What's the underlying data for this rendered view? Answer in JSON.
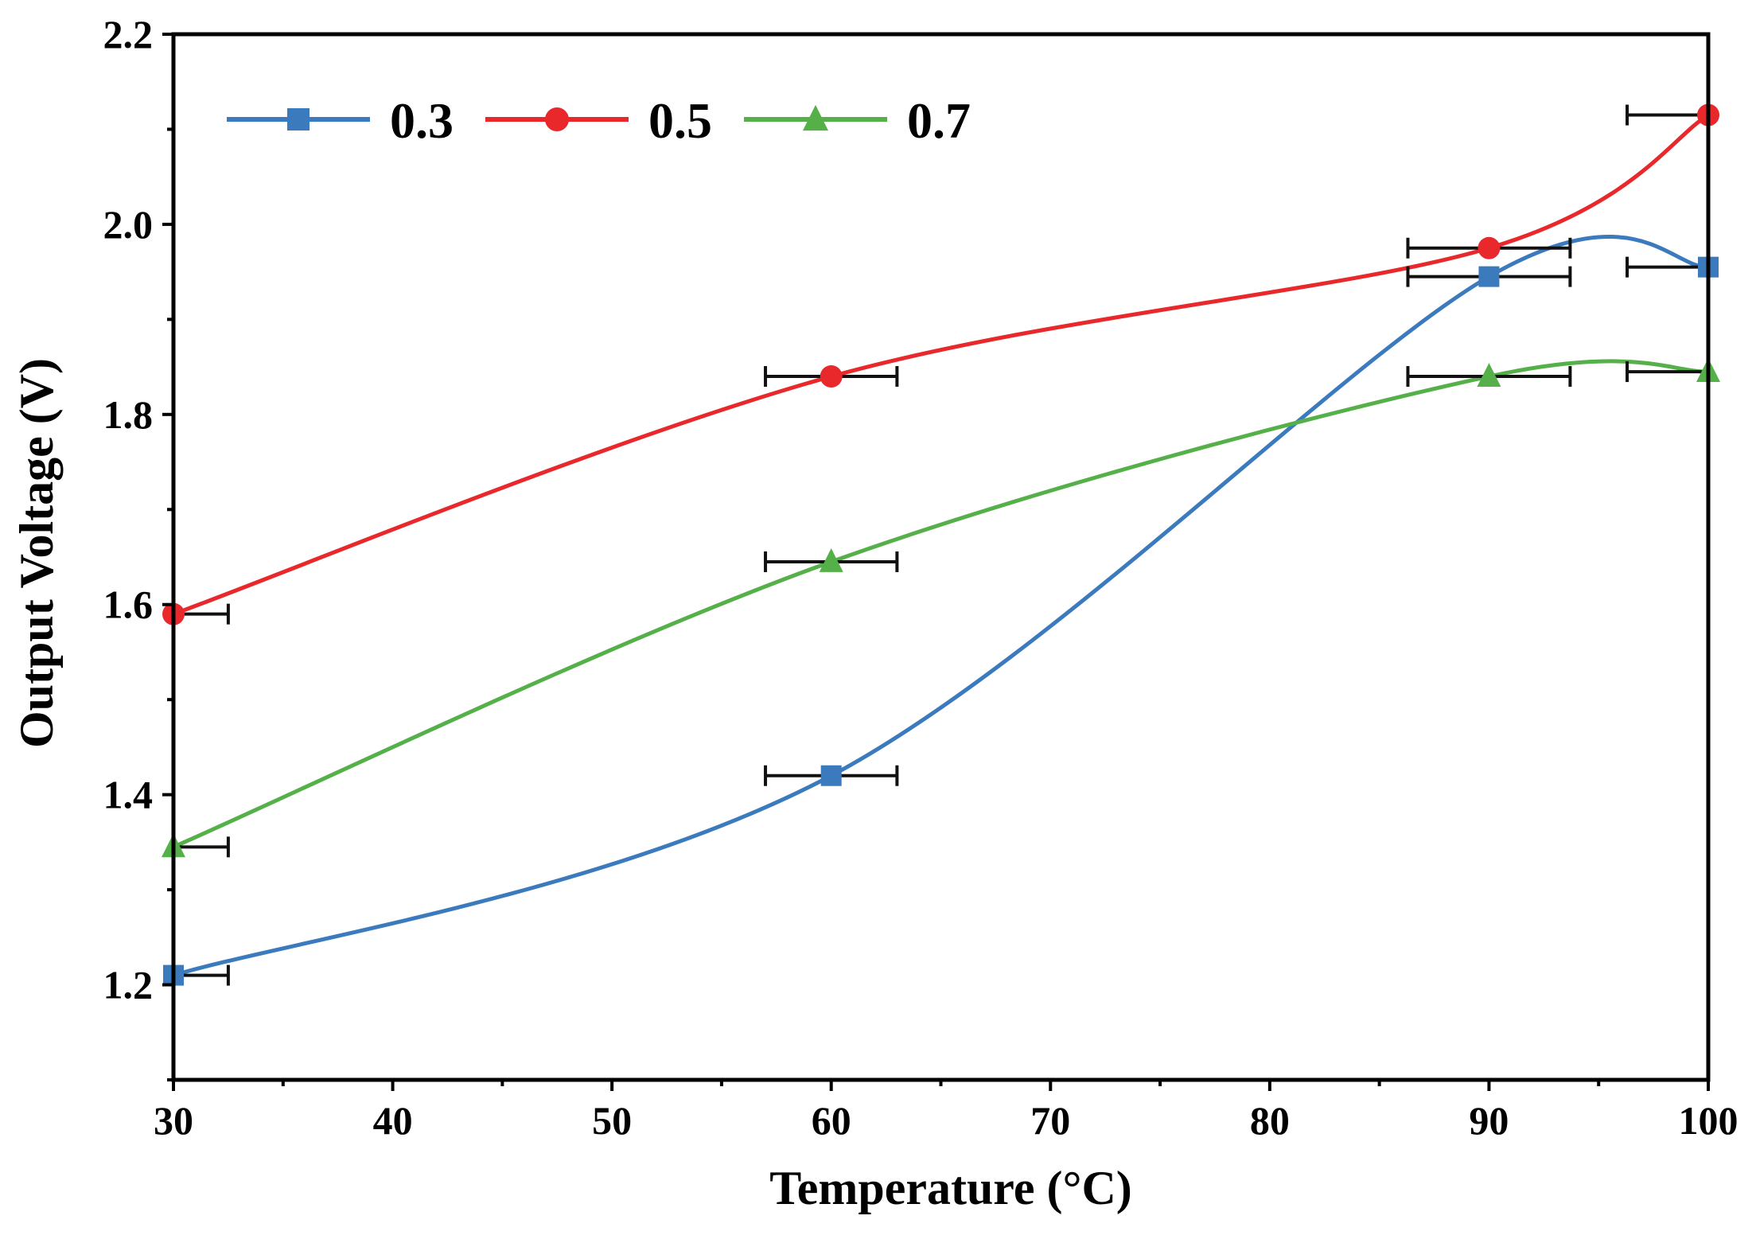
{
  "chart_data": {
    "type": "line",
    "title": "",
    "xlabel": "Temperature (°C)",
    "ylabel": "Output Voltage (V)",
    "xlim": [
      30,
      100
    ],
    "ylim": [
      1.1,
      2.2
    ],
    "xticks": [
      30,
      40,
      50,
      60,
      70,
      80,
      90,
      100
    ],
    "yticks": [
      1.2,
      1.4,
      1.6,
      1.8,
      2.0,
      2.2
    ],
    "xtick_labels": [
      "30",
      "40",
      "50",
      "60",
      "70",
      "80",
      "90",
      "100"
    ],
    "ytick_labels": [
      "1.2",
      "1.4",
      "1.6",
      "1.8",
      "2.0",
      "2.2"
    ],
    "grid": false,
    "legend_position": "top-left",
    "x": [
      30,
      60,
      90,
      100
    ],
    "series": [
      {
        "name": "0.3",
        "color": "#3b7bbd",
        "marker": "square",
        "values": [
          1.21,
          1.42,
          1.945,
          1.955
        ],
        "x_error": [
          2.5,
          3.0,
          3.7,
          3.7
        ]
      },
      {
        "name": "0.5",
        "color": "#e8282b",
        "marker": "circle",
        "values": [
          1.59,
          1.84,
          1.975,
          2.115
        ],
        "x_error": [
          2.5,
          3.0,
          3.7,
          3.7
        ]
      },
      {
        "name": "0.7",
        "color": "#55b04a",
        "marker": "triangle",
        "values": [
          1.345,
          1.645,
          1.84,
          1.845
        ],
        "x_error": [
          2.5,
          3.0,
          3.7,
          3.7
        ]
      }
    ]
  }
}
